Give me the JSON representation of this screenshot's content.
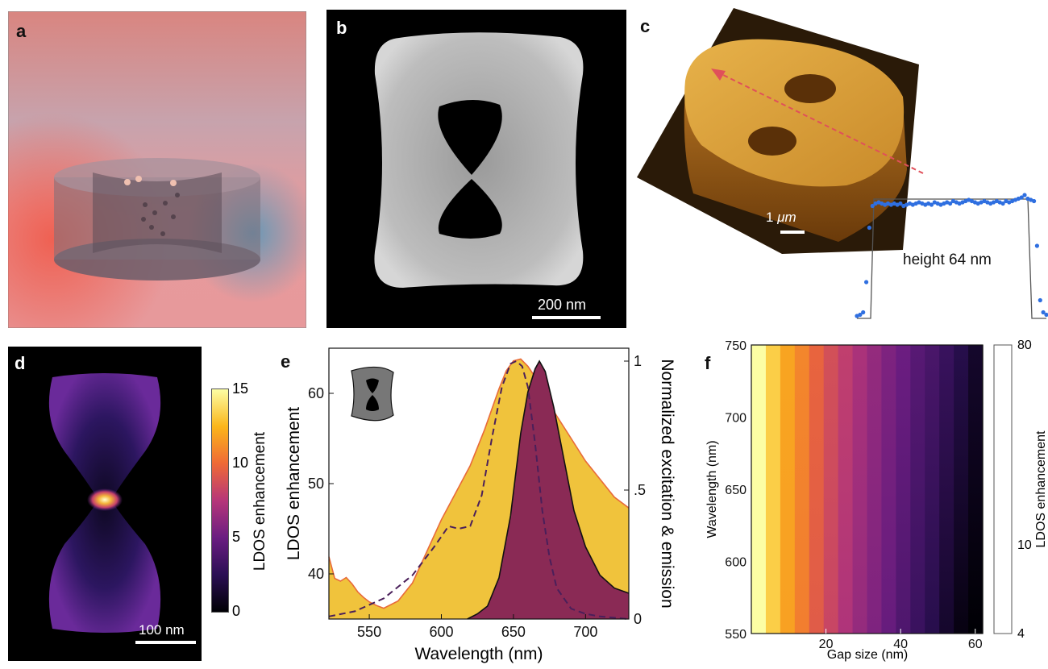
{
  "panels": {
    "a": {
      "label": "a"
    },
    "b": {
      "label": "b",
      "scale_bar": "200 nm"
    },
    "c": {
      "label": "c",
      "scale_bar_value": "1",
      "scale_bar_unit": "μm",
      "height_text": "height 64 nm",
      "profile": [
        0.02,
        0.03,
        0.05,
        0.3,
        0.75,
        0.93,
        0.95,
        0.96,
        0.95,
        0.94,
        0.95,
        0.94,
        0.95,
        0.94,
        0.95,
        0.93,
        0.94,
        0.95,
        0.94,
        0.95,
        0.96,
        0.95,
        0.94,
        0.95,
        0.94,
        0.96,
        0.95,
        0.94,
        0.95,
        0.96,
        0.95,
        0.97,
        0.96,
        0.95,
        0.96,
        0.97,
        0.98,
        0.97,
        0.96,
        0.95,
        0.96,
        0.97,
        0.96,
        0.95,
        0.96,
        0.97,
        0.96,
        0.95,
        0.97,
        0.96,
        0.97,
        0.98,
        0.99,
        1.0,
        1.02,
        0.99,
        0.98,
        0.97,
        0.6,
        0.15,
        0.05,
        0.03
      ]
    },
    "d": {
      "label": "d",
      "scale_bar": "100 nm",
      "colorbar": {
        "label": "LDOS enhancement",
        "ticks": [
          "0",
          "5",
          "10",
          "15"
        ],
        "min": 0,
        "max": 15
      }
    },
    "e": {
      "label": "e"
    },
    "f": {
      "label": "f",
      "colorbar": {
        "label": "LDOS enhancement",
        "ticks": [
          "4",
          "10",
          "80"
        ]
      }
    }
  },
  "chart_data": [
    {
      "type": "area",
      "panel": "e",
      "xlabel": "Wavelength (nm)",
      "ylabel": "LDOS enhancement",
      "y2label": "Normalized excitation & emission",
      "xlim": [
        522,
        730
      ],
      "ylim": [
        35,
        65
      ],
      "y2lim": [
        0,
        1.05
      ],
      "xticks": [
        "550",
        "600",
        "650",
        "700"
      ],
      "yticks": [
        "40",
        "50",
        "60"
      ],
      "y2ticks": [
        "0",
        ".5",
        "1"
      ],
      "series": [
        {
          "axis": "left",
          "style": "filled-area",
          "color": "#f0c33c",
          "x": [
            522,
            526,
            530,
            534,
            538,
            542,
            546,
            550,
            555,
            560,
            570,
            580,
            590,
            600,
            610,
            620,
            630,
            640,
            645,
            650,
            655,
            660,
            665,
            670,
            680,
            690,
            700,
            710,
            720,
            730
          ],
          "y": [
            41.9,
            39.5,
            39.2,
            39.6,
            38.9,
            38.0,
            37.4,
            36.9,
            36.5,
            36.2,
            37.0,
            39.0,
            42.5,
            46.0,
            49.0,
            52.0,
            56.0,
            60.5,
            62.5,
            63.6,
            63.8,
            63.0,
            61.8,
            60.0,
            57.5,
            55.0,
            52.5,
            50.5,
            48.5,
            47.3
          ]
        },
        {
          "axis": "right",
          "style": "filled-area",
          "color": "#8a2a55",
          "x": [
            618,
            625,
            632,
            640,
            648,
            655,
            660,
            665,
            668,
            672,
            678,
            685,
            692,
            700,
            710,
            720,
            730
          ],
          "y": [
            0.0,
            0.02,
            0.05,
            0.16,
            0.4,
            0.72,
            0.88,
            0.97,
            1.0,
            0.96,
            0.82,
            0.62,
            0.42,
            0.28,
            0.17,
            0.12,
            0.1
          ]
        },
        {
          "axis": "right",
          "style": "dashed-line",
          "color": "#4a1f5a",
          "x": [
            522,
            540,
            560,
            580,
            595,
            605,
            612,
            620,
            628,
            635,
            642,
            648,
            652,
            656,
            660,
            665,
            670,
            675,
            680,
            690,
            700,
            710,
            720,
            730
          ],
          "y": [
            0.01,
            0.03,
            0.08,
            0.17,
            0.28,
            0.36,
            0.35,
            0.36,
            0.48,
            0.7,
            0.9,
            0.99,
            1.0,
            0.98,
            0.9,
            0.68,
            0.42,
            0.24,
            0.12,
            0.04,
            0.02,
            0.01,
            0.005,
            0.0
          ]
        }
      ]
    },
    {
      "type": "heatmap",
      "panel": "f",
      "xlabel": "Gap size (nm)",
      "ylabel": "Wavelength (nm)",
      "xlim": [
        0,
        62
      ],
      "ylim": [
        550,
        750
      ],
      "xticks": [
        "20",
        "40",
        "60"
      ],
      "yticks": [
        "550",
        "600",
        "650",
        "700",
        "750"
      ],
      "gap_sizes": [
        2,
        6,
        10,
        14,
        18,
        22,
        26,
        30,
        34,
        38,
        42,
        46,
        50,
        54,
        58,
        62
      ],
      "enhancement_top": [
        80,
        58,
        44,
        36,
        28,
        23,
        19.5,
        16.5,
        14,
        12,
        10.5,
        9,
        8,
        7,
        6,
        5
      ],
      "enhancement_bottom": [
        80,
        58,
        43,
        34,
        26,
        21,
        17,
        14,
        12,
        10,
        8.3,
        7,
        6,
        5,
        4.3,
        4
      ],
      "colorbar_range": [
        4,
        80
      ],
      "scale": "log"
    }
  ]
}
